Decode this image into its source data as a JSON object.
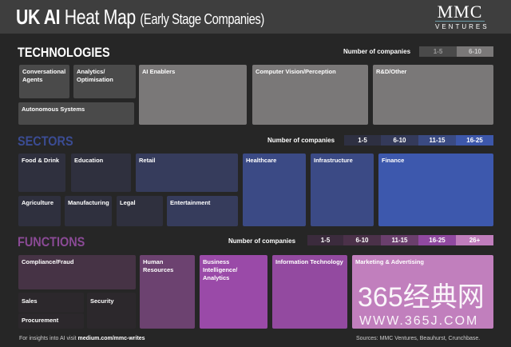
{
  "header": {
    "title_bold": "UK AI",
    "title_rest": "Heat Map",
    "subtitle": "(Early Stage Companies)",
    "logo_main": "MMC",
    "logo_sub": "VENTURES"
  },
  "technologies": {
    "title": "TECHNOLOGIES",
    "legend_label": "Number of companies",
    "legend": [
      {
        "label": "1-5",
        "color": "#4a4a4a"
      },
      {
        "label": "6-10",
        "color": "#7a7878"
      }
    ],
    "tiles": [
      "Conversational Agents",
      "Analytics/ Optimisation",
      "Autonomous Systems",
      "AI Enablers",
      "Computer Vision/Perception",
      "R&D/Other"
    ]
  },
  "sectors": {
    "title": "SECTORS",
    "title_color": "#3b4c93",
    "legend_label": "Number of companies",
    "legend": [
      {
        "label": "1-5",
        "color": "#2e3042"
      },
      {
        "label": "6-10",
        "color": "#343a5a"
      },
      {
        "label": "11-15",
        "color": "#3a4a82"
      },
      {
        "label": "16-25",
        "color": "#3d57aa"
      }
    ],
    "tiles": [
      "Food & Drink",
      "Education",
      "Retail",
      "Agriculture",
      "Manufacturing",
      "Legal",
      "Entertainment",
      "Healthcare",
      "Infrastructure",
      "Finance"
    ]
  },
  "functions": {
    "title": "FUNCTIONS",
    "title_color": "#8a4a95",
    "legend_label": "Number of companies",
    "legend": [
      {
        "label": "1-5",
        "color": "#3b2b3d"
      },
      {
        "label": "6-10",
        "color": "#4b3149"
      },
      {
        "label": "11-15",
        "color": "#6a3f6c"
      },
      {
        "label": "16-25",
        "color": "#9049a0"
      },
      {
        "label": "26+",
        "color": "#c07dbc"
      }
    ],
    "tiles": [
      "Compliance/Fraud",
      "Sales",
      "Procurement",
      "Security",
      "Human Resources",
      "Business Intelligence/ Analytics",
      "Information Technology",
      "Marketing & Advertising"
    ]
  },
  "footer": {
    "prefix": "For insights into AI visit ",
    "link": "medium.com/mmc-writes",
    "sources": "Sources: MMC Ventures, Beauhurst, Crunchbase."
  },
  "watermark": {
    "main": "365经典网",
    "url": "WWW.365J.COM"
  }
}
